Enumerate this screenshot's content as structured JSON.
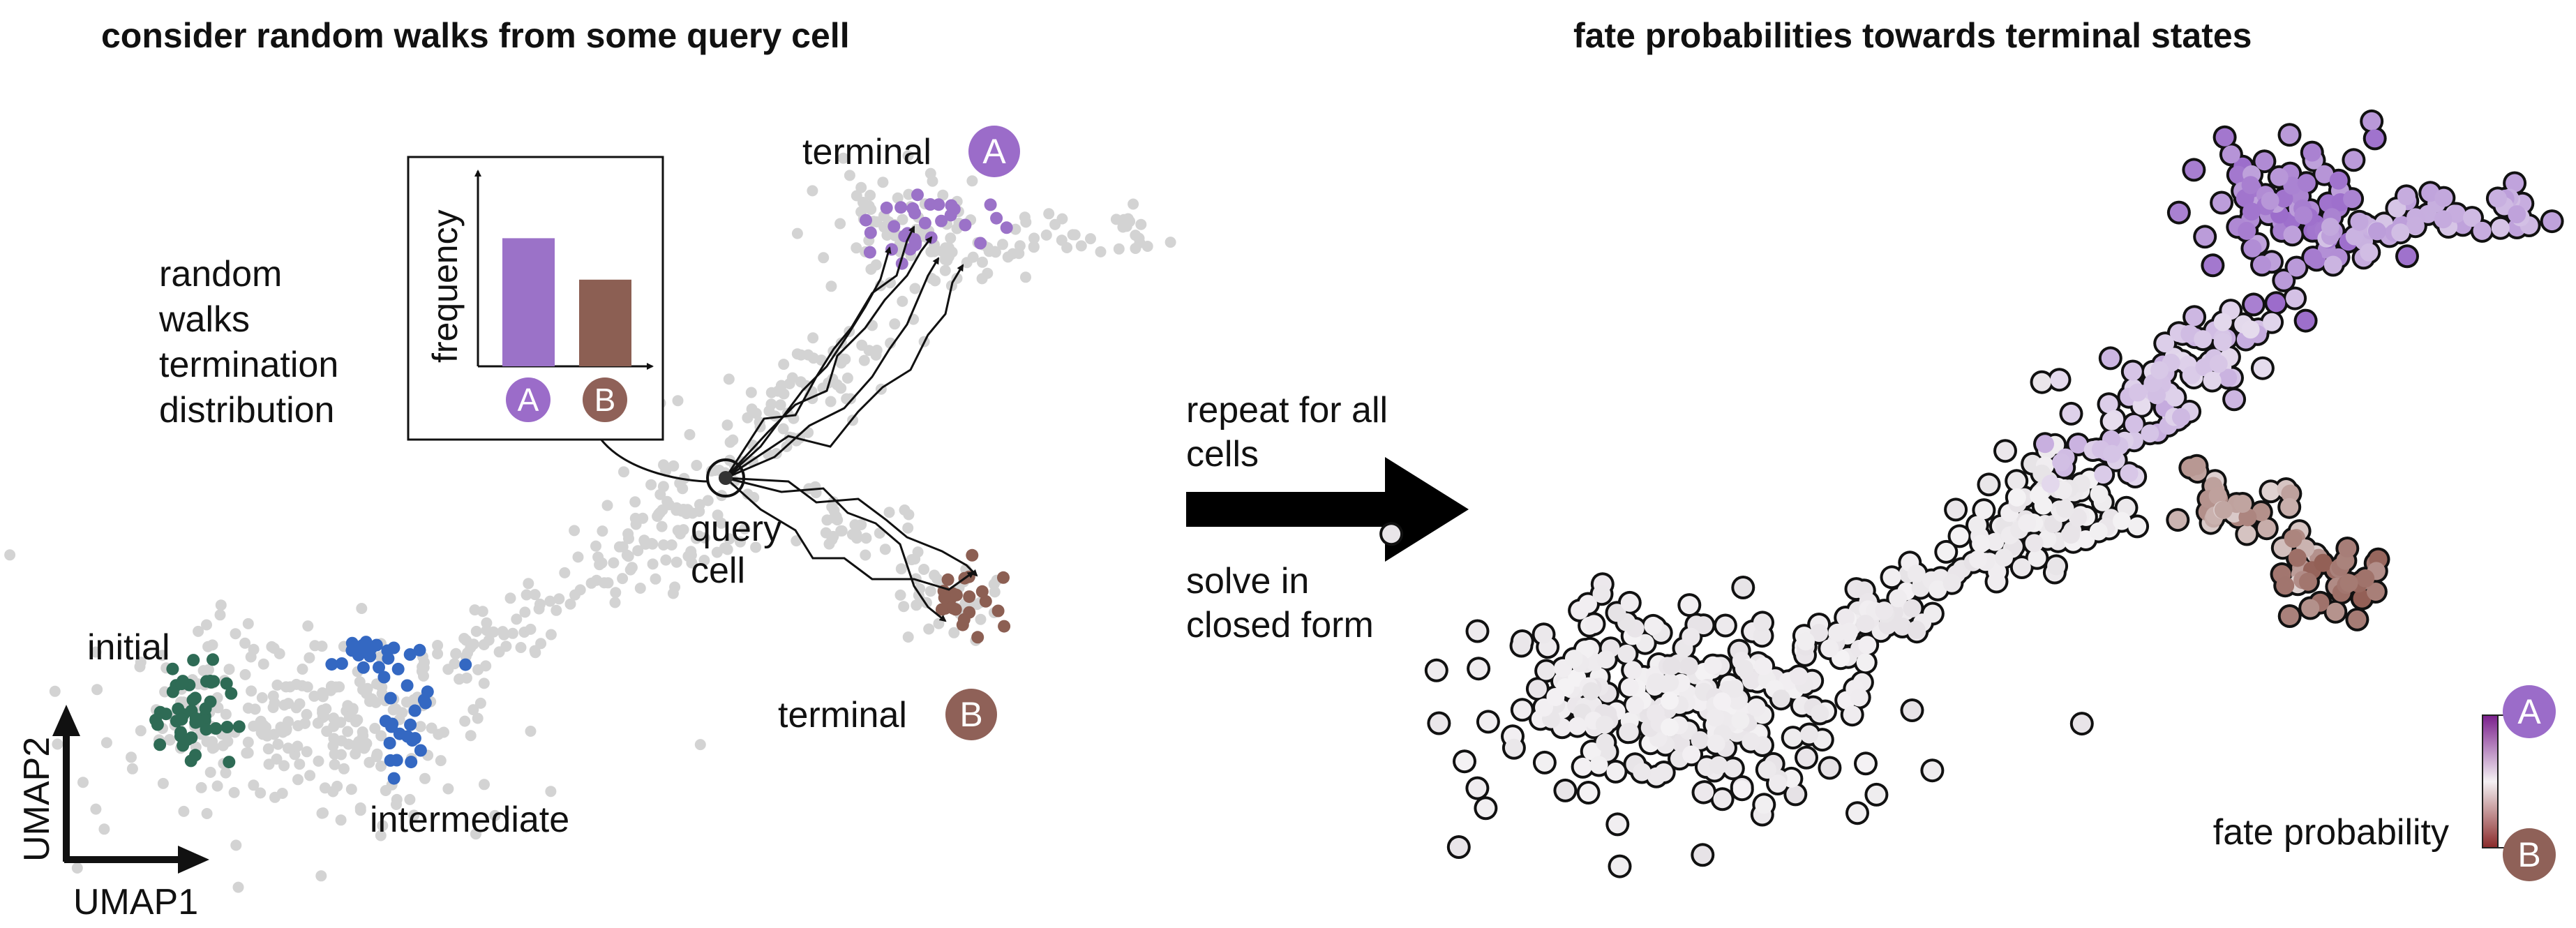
{
  "left_panel": {
    "title": "consider random walks from some query cell",
    "annotation_lines": [
      "random",
      "walks",
      "termination",
      "distribution"
    ],
    "inset": {
      "ylabel": "frequency",
      "bars": [
        {
          "label": "A",
          "frequency": 0.68,
          "color": "#9b72c8"
        },
        {
          "label": "B",
          "frequency": 0.46,
          "color": "#8c5f53"
        }
      ]
    },
    "labels": {
      "terminal_a": "terminal",
      "terminal_b": "terminal",
      "query_cell_line1": "query",
      "query_cell_line2": "cell",
      "initial": "initial",
      "intermediate": "intermediate"
    },
    "badges": {
      "a": "A",
      "b": "B"
    },
    "axes": {
      "x": "UMAP1",
      "y": "UMAP2"
    }
  },
  "middle": {
    "top_text": [
      "repeat for all",
      "cells"
    ],
    "bottom_text": [
      "solve in",
      "closed form"
    ]
  },
  "right_panel": {
    "title": "fate probabilities towards terminal states",
    "colorbar": {
      "label": "fate probability",
      "top_badge": "A",
      "bottom_badge": "B"
    }
  },
  "colors": {
    "grey_cell": "#d3d3d3",
    "initial": "#2e6b55",
    "intermediate": "#3468c2",
    "terminal_a": "#9b72c8",
    "terminal_b": "#8c5f53",
    "badge_a": "#9b6cc9",
    "badge_b": "#8f6158"
  }
}
